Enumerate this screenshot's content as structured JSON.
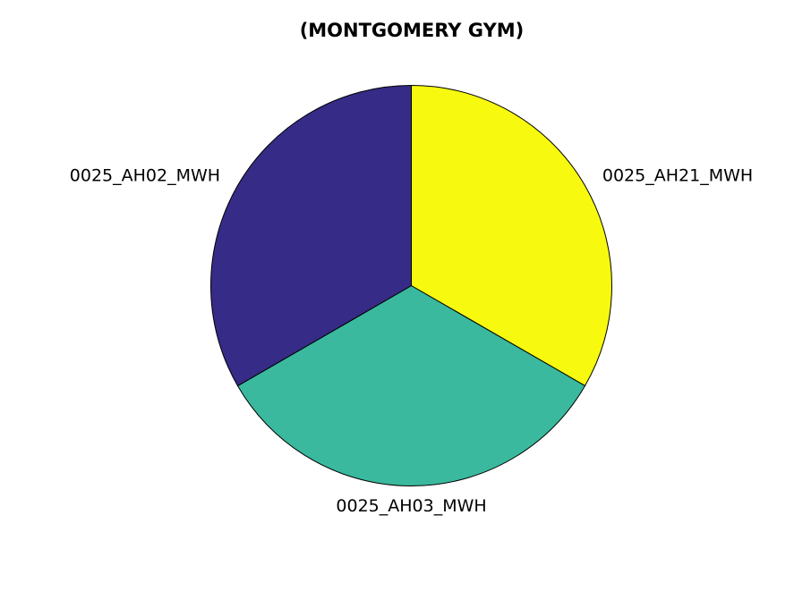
{
  "chart_data": {
    "type": "pie",
    "title": "(MONTGOMERY GYM)",
    "start_angle_deg": 90,
    "direction": "clockwise",
    "slices": [
      {
        "label": "0025_AH21_MWH",
        "value": 33.33,
        "color": "#f7fa0f"
      },
      {
        "label": "0025_AH03_MWH",
        "value": 33.33,
        "color": "#3ab99e"
      },
      {
        "label": "0025_AH02_MWH",
        "value": 33.34,
        "color": "#362b86"
      }
    ],
    "edge_color": "#000000",
    "legend": "none"
  }
}
